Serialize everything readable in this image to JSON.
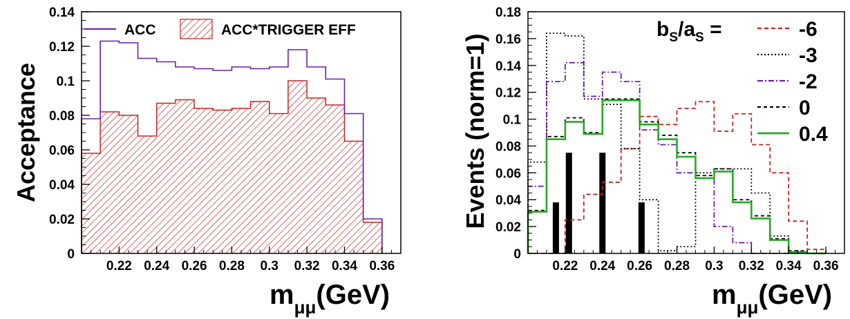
{
  "chart_data": [
    {
      "type": "histogram",
      "ylabel": "Acceptance",
      "xlabel": {
        "main": "m",
        "sub": "μμ",
        "tail": "(GeV)"
      },
      "xlim": [
        0.2,
        0.37
      ],
      "ylim": [
        0,
        0.14
      ],
      "bin_edges": [
        0.2,
        0.21,
        0.22,
        0.23,
        0.24,
        0.25,
        0.26,
        0.27,
        0.28,
        0.29,
        0.3,
        0.31,
        0.32,
        0.33,
        0.34,
        0.35,
        0.36
      ],
      "x_ticks": [
        0.22,
        0.24,
        0.26,
        0.28,
        0.3,
        0.32,
        0.34,
        0.36
      ],
      "x_tick_labels": [
        "0.22",
        "0.24",
        "0.26",
        "0.28",
        "0.3",
        "0.32",
        "0.34",
        "0.36"
      ],
      "y_ticks": [
        0,
        0.02,
        0.04,
        0.06,
        0.08,
        0.1,
        0.12,
        0.14
      ],
      "y_tick_labels": [
        "0",
        "0.02",
        "0.04",
        "0.06",
        "0.08",
        "0.1",
        "0.12",
        "0.14"
      ],
      "legend": {
        "placement": "top",
        "entries": [
          "ACC",
          "ACC*TRIGGER EFF"
        ]
      },
      "series": [
        {
          "name": "ACC",
          "color": "#6a1bb0",
          "style": "line",
          "values": [
            0.078,
            0.123,
            0.122,
            0.113,
            0.111,
            0.108,
            0.107,
            0.106,
            0.108,
            0.107,
            0.108,
            0.118,
            0.108,
            0.101,
            0.081,
            0.02
          ]
        },
        {
          "name": "ACC*TRIGGER EFF",
          "color": "#cc2020",
          "style": "hatched",
          "values": [
            0.058,
            0.082,
            0.08,
            0.068,
            0.087,
            0.089,
            0.084,
            0.083,
            0.084,
            0.088,
            0.081,
            0.1,
            0.09,
            0.086,
            0.065,
            0.018
          ]
        }
      ]
    },
    {
      "type": "histogram",
      "ylabel": "Events (norm=1)",
      "xlabel": {
        "main": "m",
        "sub": "μμ",
        "tail": "(GeV)"
      },
      "xlim": [
        0.2,
        0.37
      ],
      "ylim": [
        0,
        0.18
      ],
      "bin_edges": [
        0.2,
        0.21,
        0.22,
        0.23,
        0.24,
        0.25,
        0.26,
        0.27,
        0.28,
        0.29,
        0.3,
        0.31,
        0.32,
        0.33,
        0.34,
        0.35,
        0.36
      ],
      "x_ticks": [
        0.22,
        0.24,
        0.26,
        0.28,
        0.3,
        0.32,
        0.34,
        0.36
      ],
      "x_tick_labels": [
        "0.22",
        "0.24",
        "0.26",
        "0.28",
        "0.3",
        "0.32",
        "0.34",
        "0.36"
      ],
      "y_ticks": [
        0,
        0.02,
        0.04,
        0.06,
        0.08,
        0.1,
        0.12,
        0.14,
        0.16,
        0.18
      ],
      "y_tick_labels": [
        "0",
        "0.02",
        "0.04",
        "0.06",
        "0.08",
        "0.1",
        "0.12",
        "0.14",
        "0.16",
        "0.18"
      ],
      "legend": {
        "placement": "top-right",
        "title": {
          "b": "b",
          "bsub": "S",
          "slash": "/",
          "a": "a",
          "asub": "S",
          "eq": " ="
        }
      },
      "series": [
        {
          "name": "-6",
          "color": "#cc2020",
          "dash": "6,4",
          "values": [
            0.0,
            0.0,
            0.025,
            0.044,
            0.053,
            0.078,
            0.102,
            0.096,
            0.108,
            0.113,
            0.091,
            0.104,
            0.081,
            0.06,
            0.024,
            0.003
          ]
        },
        {
          "name": "-3",
          "color": "#000000",
          "dash": "2,3",
          "values": [
            0.068,
            0.164,
            0.162,
            0.115,
            0.111,
            0.078,
            0.04,
            0.002,
            0.005,
            0.06,
            0.063,
            0.063,
            0.045,
            0.013,
            0.0,
            0.0
          ]
        },
        {
          "name": "-2",
          "color": "#6a1bb0",
          "dash": "8,3,2,3",
          "values": [
            0.05,
            0.128,
            0.142,
            0.117,
            0.135,
            0.128,
            0.092,
            0.081,
            0.06,
            0.056,
            0.02,
            0.008,
            0.0,
            0.0,
            0.0,
            0.0
          ]
        },
        {
          "name": "0",
          "color": "#000000",
          "dash": "5,4",
          "values": [
            0.032,
            0.087,
            0.101,
            0.09,
            0.115,
            0.115,
            0.098,
            0.088,
            0.075,
            0.058,
            0.063,
            0.04,
            0.028,
            0.011,
            0.002,
            0.0
          ]
        },
        {
          "name": "0.4",
          "color": "#22aa22",
          "dash": "",
          "values": [
            0.031,
            0.085,
            0.098,
            0.089,
            0.114,
            0.114,
            0.096,
            0.085,
            0.072,
            0.056,
            0.061,
            0.038,
            0.026,
            0.01,
            0.001,
            0.0
          ]
        }
      ],
      "data_bars": {
        "x": [
          0.215,
          0.222,
          0.24,
          0.261
        ],
        "values": [
          0.038,
          0.075,
          0.075,
          0.038
        ]
      }
    }
  ]
}
